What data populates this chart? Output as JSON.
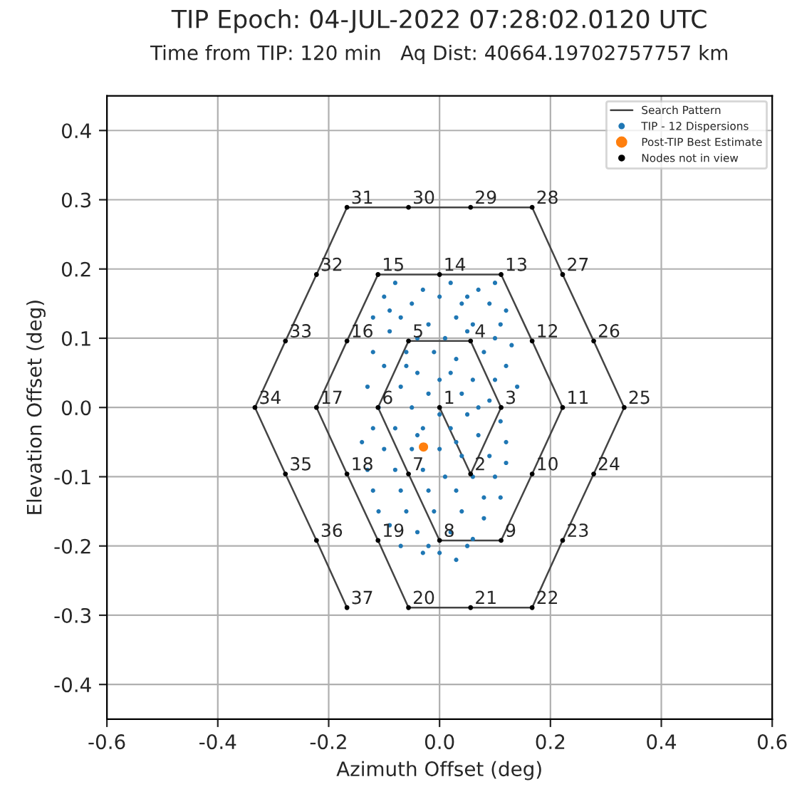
{
  "chart_data": {
    "type": "scatter",
    "title": "TIP Epoch: 04-JUL-2022 07:28:02.0120 UTC",
    "subtitle": "Time from TIP: 120 min   Aq Dist: 40664.19702757757 km",
    "xlabel": "Azimuth Offset (deg)",
    "ylabel": "Elevation Offset (deg)",
    "xlim": [
      -0.6,
      0.6
    ],
    "ylim": [
      -0.45,
      0.45
    ],
    "xticks": [
      -0.6,
      -0.4,
      -0.2,
      {
        "value": 0,
        "label": "0.0"
      },
      0.2,
      0.4,
      0.6
    ],
    "yticks": [
      -0.4,
      -0.3,
      -0.2,
      -0.1,
      {
        "value": 0,
        "label": "0.0"
      },
      0.1,
      0.2,
      0.3,
      0.4
    ],
    "grid": true,
    "legend": "top right",
    "series": [
      {
        "name": "Search Pattern",
        "type": "line",
        "marker": "none",
        "color": "#444444",
        "x": [
          0,
          0.056,
          0.111,
          0.056,
          -0.056,
          -0.111,
          -0.056,
          0,
          0.111,
          0.167,
          0.222,
          0.167,
          0.111,
          0,
          -0.111,
          -0.167,
          -0.222,
          -0.167,
          -0.111,
          -0.056,
          0.056,
          0.167,
          0.222,
          0.278,
          0.333,
          0.278,
          0.222,
          0.167,
          0.056,
          -0.056,
          -0.167,
          -0.222,
          -0.278,
          -0.333,
          -0.278,
          -0.222,
          -0.167
        ],
        "values": [
          0,
          -0.096,
          0,
          0.096,
          0.096,
          0,
          -0.096,
          -0.192,
          -0.192,
          -0.096,
          0,
          0.096,
          0.192,
          0.192,
          0.192,
          0.096,
          0,
          -0.096,
          -0.192,
          -0.289,
          -0.289,
          -0.289,
          -0.192,
          -0.096,
          0,
          0.096,
          0.192,
          0.289,
          0.289,
          0.289,
          0.289,
          0.192,
          0.096,
          0,
          -0.096,
          -0.192,
          -0.289
        ]
      },
      {
        "name": "TIP - 12 Dispersions",
        "type": "scatter",
        "marker": "circle",
        "color": "#1f77b4",
        "x": [
          -0.08,
          -0.03,
          0.02,
          0.07,
          0.1,
          -0.1,
          -0.05,
          0.0,
          0.04,
          0.09,
          0.12,
          -0.12,
          -0.07,
          -0.02,
          0.03,
          0.06,
          0.11,
          -0.09,
          -0.04,
          0.01,
          0.05,
          0.1,
          0.13,
          -0.12,
          -0.06,
          -0.01,
          0.03,
          0.08,
          0.12,
          -0.1,
          -0.04,
          0.02,
          0.06,
          0.1,
          0.14,
          -0.13,
          -0.07,
          -0.02,
          0.04,
          0.09,
          -0.11,
          -0.05,
          0.0,
          0.05,
          0.11,
          -0.12,
          -0.08,
          -0.03,
          0.02,
          0.07,
          0.12,
          -0.14,
          -0.1,
          -0.05,
          0.0,
          0.04,
          0.09,
          0.12,
          -0.13,
          -0.08,
          -0.03,
          0.01,
          0.06,
          0.1,
          -0.12,
          -0.07,
          -0.02,
          0.03,
          0.08,
          0.11,
          -0.11,
          -0.06,
          -0.01,
          0.04,
          0.08,
          -0.09,
          -0.04,
          0.02,
          0.06,
          -0.07,
          -0.02,
          0.05,
          -0.03,
          0.0,
          0.03,
          -0.06,
          0.0,
          0.07,
          -0.04,
          0.03,
          -0.09,
          0.05
        ],
        "values": [
          0.18,
          0.17,
          0.18,
          0.17,
          0.18,
          0.16,
          0.15,
          0.16,
          0.15,
          0.15,
          0.14,
          0.13,
          0.13,
          0.12,
          0.13,
          0.12,
          0.12,
          0.11,
          0.1,
          0.1,
          0.11,
          0.1,
          0.09,
          0.08,
          0.08,
          0.08,
          0.07,
          0.08,
          0.06,
          0.06,
          0.05,
          0.05,
          0.04,
          0.04,
          0.03,
          0.03,
          0.03,
          0.02,
          0.02,
          0.01,
          0.0,
          0.0,
          -0.01,
          -0.01,
          -0.02,
          -0.03,
          -0.03,
          -0.03,
          -0.03,
          -0.04,
          -0.05,
          -0.05,
          -0.06,
          -0.06,
          -0.06,
          -0.07,
          -0.07,
          -0.08,
          -0.09,
          -0.09,
          -0.09,
          -0.1,
          -0.1,
          -0.1,
          -0.12,
          -0.12,
          -0.12,
          -0.12,
          -0.13,
          -0.13,
          -0.15,
          -0.15,
          -0.15,
          -0.15,
          -0.16,
          -0.17,
          -0.18,
          -0.18,
          -0.19,
          -0.2,
          -0.2,
          -0.2,
          -0.21,
          -0.21,
          -0.22,
          0.06,
          0.04,
          0.0,
          -0.04,
          -0.05,
          0.14,
          0.16
        ]
      },
      {
        "name": "Post-TIP Best Estimate",
        "type": "scatter",
        "marker": "circle",
        "color": "#ff7f0e",
        "x": [
          -0.029
        ],
        "values": [
          -0.057
        ]
      },
      {
        "name": "Nodes not in view",
        "type": "scatter",
        "marker": "circle",
        "color": "#000000",
        "x": [
          0,
          0.056,
          0.111,
          0.056,
          -0.056,
          -0.111,
          -0.056,
          0,
          0.111,
          0.167,
          0.222,
          0.167,
          0.111,
          0,
          -0.111,
          -0.167,
          -0.222,
          -0.167,
          -0.111,
          -0.056,
          0.056,
          0.167,
          0.222,
          0.278,
          0.333,
          0.278,
          0.222,
          0.167,
          0.056,
          -0.056,
          -0.167,
          -0.222,
          -0.278,
          -0.333,
          -0.278,
          -0.222,
          -0.167
        ],
        "values": [
          0,
          -0.096,
          0,
          0.096,
          0.096,
          0,
          -0.096,
          -0.192,
          -0.192,
          -0.096,
          0,
          0.096,
          0.192,
          0.192,
          0.192,
          0.096,
          0,
          -0.096,
          -0.192,
          -0.289,
          -0.289,
          -0.289,
          -0.192,
          -0.096,
          0,
          0.096,
          0.192,
          0.289,
          0.289,
          0.289,
          0.289,
          0.192,
          0.096,
          0,
          -0.096,
          -0.192,
          -0.289
        ]
      }
    ],
    "annotations": [
      {
        "text": "1",
        "x": 0,
        "y": 0
      },
      {
        "text": "2",
        "x": 0.056,
        "y": -0.096
      },
      {
        "text": "3",
        "x": 0.111,
        "y": 0
      },
      {
        "text": "4",
        "x": 0.056,
        "y": 0.096
      },
      {
        "text": "5",
        "x": -0.056,
        "y": 0.096
      },
      {
        "text": "6",
        "x": -0.111,
        "y": 0
      },
      {
        "text": "7",
        "x": -0.056,
        "y": -0.096
      },
      {
        "text": "8",
        "x": 0,
        "y": -0.192
      },
      {
        "text": "9",
        "x": 0.111,
        "y": -0.192
      },
      {
        "text": "10",
        "x": 0.167,
        "y": -0.096
      },
      {
        "text": "11",
        "x": 0.222,
        "y": 0
      },
      {
        "text": "12",
        "x": 0.167,
        "y": 0.096
      },
      {
        "text": "13",
        "x": 0.111,
        "y": 0.192
      },
      {
        "text": "14",
        "x": 0,
        "y": 0.192
      },
      {
        "text": "15",
        "x": -0.111,
        "y": 0.192
      },
      {
        "text": "16",
        "x": -0.167,
        "y": 0.096
      },
      {
        "text": "17",
        "x": -0.222,
        "y": 0
      },
      {
        "text": "18",
        "x": -0.167,
        "y": -0.096
      },
      {
        "text": "19",
        "x": -0.111,
        "y": -0.192
      },
      {
        "text": "20",
        "x": -0.056,
        "y": -0.289
      },
      {
        "text": "21",
        "x": 0.056,
        "y": -0.289
      },
      {
        "text": "22",
        "x": 0.167,
        "y": -0.289
      },
      {
        "text": "23",
        "x": 0.222,
        "y": -0.192
      },
      {
        "text": "24",
        "x": 0.278,
        "y": -0.096
      },
      {
        "text": "25",
        "x": 0.333,
        "y": 0
      },
      {
        "text": "26",
        "x": 0.278,
        "y": 0.096
      },
      {
        "text": "27",
        "x": 0.222,
        "y": 0.192
      },
      {
        "text": "28",
        "x": 0.167,
        "y": 0.289
      },
      {
        "text": "29",
        "x": 0.056,
        "y": 0.289
      },
      {
        "text": "30",
        "x": -0.056,
        "y": 0.289
      },
      {
        "text": "31",
        "x": -0.167,
        "y": 0.289
      },
      {
        "text": "32",
        "x": -0.222,
        "y": 0.192
      },
      {
        "text": "33",
        "x": -0.278,
        "y": 0.096
      },
      {
        "text": "34",
        "x": -0.333,
        "y": 0
      },
      {
        "text": "35",
        "x": -0.278,
        "y": -0.096
      },
      {
        "text": "36",
        "x": -0.222,
        "y": -0.192
      },
      {
        "text": "37",
        "x": -0.167,
        "y": -0.289
      }
    ]
  }
}
